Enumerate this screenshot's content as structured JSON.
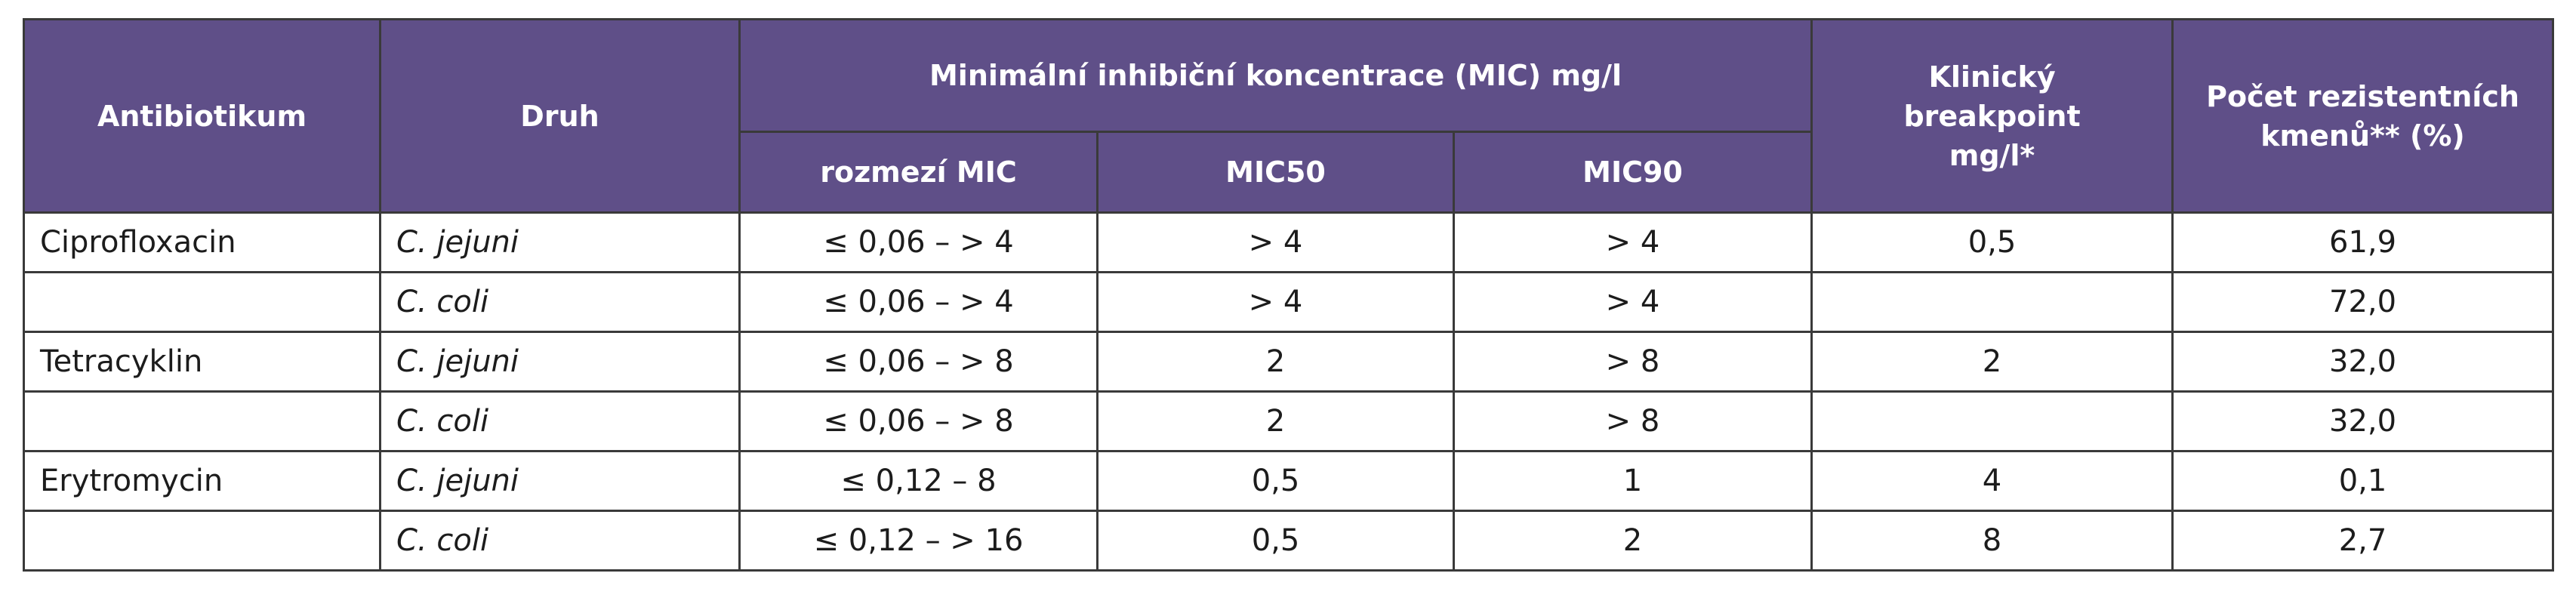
{
  "table": {
    "headers": {
      "antibiotic": "Antibiotikum",
      "species": "Druh",
      "mic_group": "Minimální inhibiční koncentrace (MIC) mg/l",
      "mic_range": "rozmezí MIC",
      "mic50": "MIC50",
      "mic90": "MIC90",
      "breakpoint": "Klinický breakpoint mg/l*",
      "resistant": "Počet rezistentních kmenů** (%)"
    },
    "rows": [
      {
        "antibiotic": "Ciprofloxacin",
        "species": "C. jejuni",
        "range": "≤ 0,06 – > 4",
        "mic50": "> 4",
        "mic90": "> 4",
        "breakpoint": "0,5",
        "resistant": "61,9"
      },
      {
        "antibiotic": "",
        "species": "C. coli",
        "range": "≤ 0,06 – > 4",
        "mic50": "> 4",
        "mic90": "> 4",
        "breakpoint": "",
        "resistant": "72,0"
      },
      {
        "antibiotic": "Tetracyklin",
        "species": "C. jejuni",
        "range": "≤ 0,06 – > 8",
        "mic50": "2",
        "mic90": "> 8",
        "breakpoint": "2",
        "resistant": "32,0"
      },
      {
        "antibiotic": "",
        "species": "C. coli",
        "range": "≤ 0,06 – > 8",
        "mic50": "2",
        "mic90": "> 8",
        "breakpoint": "",
        "resistant": "32,0"
      },
      {
        "antibiotic": "Erytromycin",
        "species": "C. jejuni",
        "range": "≤ 0,12 – 8",
        "mic50": "0,5",
        "mic90": "1",
        "breakpoint": "4",
        "resistant": "0,1"
      },
      {
        "antibiotic": "",
        "species": "C. coli",
        "range": "≤ 0,12 – > 16",
        "mic50": "0,5",
        "mic90": "2",
        "breakpoint": "8",
        "resistant": "2,7"
      }
    ]
  }
}
